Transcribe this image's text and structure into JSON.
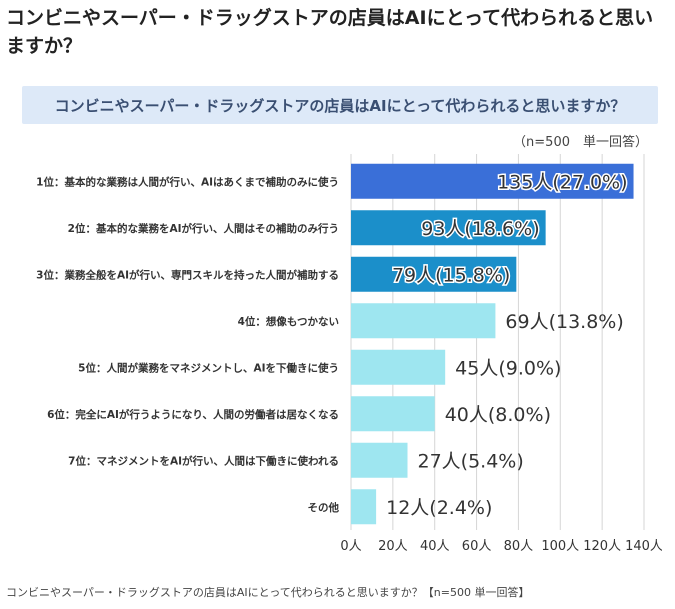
{
  "page": {
    "heading": "コンビニやスーパー・ドラッグストアの店員はAIにとって代わられると思いますか？",
    "caption": "コンビニやスーパー・ドラッグストアの店員はAIにとって代わられると思いますか？【n=500 単一回答】"
  },
  "chart_data": {
    "type": "bar",
    "orientation": "horizontal",
    "title": "コンビニやスーパー・ドラッグストアの店員はAIにとって代わられると思いますか？",
    "note": "（n=500　単一回答）",
    "categories": [
      "1位：基本的な業務は人間が行い、AIはあくまで補助のみに使う",
      "2位：基本的な業務をAIが行い、人間はその補助のみ行う",
      "3位：業務全般をAIが行い、専門スキルを持った人間が補助する",
      "4位：想像もつかない",
      "5位：人間が業務をマネジメントし、AIを下働きに使う",
      "6位：完全にAIが行うようになり、人間の労働者は居なくなる",
      "7位：マネジメントをAIが行い、人間は下働きに使われる",
      "その他"
    ],
    "values": [
      135,
      93,
      79,
      69,
      45,
      40,
      27,
      12
    ],
    "value_labels": [
      "135人(27.0%)",
      "93人(18.6%)",
      "79人(15.8%)",
      "69人(13.8%)",
      "45人(9.0%)",
      "40人(8.0%)",
      "27人(5.4%)",
      "12人(2.4%)"
    ],
    "bar_colors": [
      "#3a6fd8",
      "#1b8fca",
      "#1b8fca",
      "#9ee6f0",
      "#9ee6f0",
      "#9ee6f0",
      "#9ee6f0",
      "#9ee6f0"
    ],
    "label_inside": [
      true,
      true,
      true,
      false,
      false,
      false,
      false,
      false
    ],
    "xlim": [
      0,
      140
    ],
    "xticks": [
      0,
      20,
      40,
      60,
      80,
      100,
      120,
      140
    ],
    "xtick_labels": [
      "0人",
      "20人",
      "40人",
      "60人",
      "80人",
      "100人",
      "120人",
      "140人"
    ],
    "grid": true,
    "colors": {
      "title_bg": "#dde9f8",
      "title_text": "#3a4f72",
      "grid": "#d6d6d6"
    }
  }
}
